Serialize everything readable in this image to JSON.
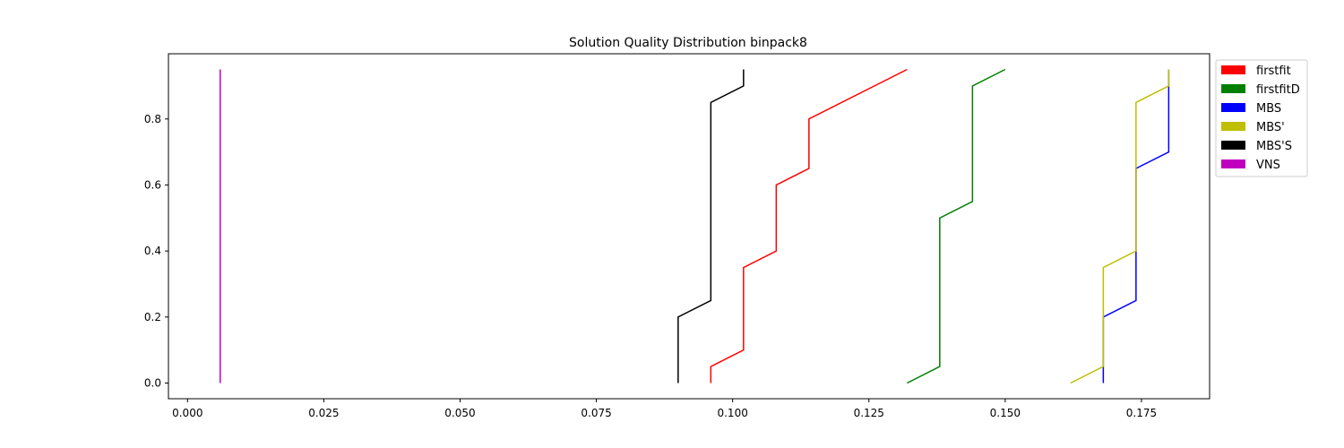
{
  "chart_data": {
    "type": "line",
    "title": "Solution Quality Distribution binpack8",
    "xlabel": "",
    "ylabel": "",
    "xlim": [
      -0.0035,
      0.1875
    ],
    "ylim": [
      -0.0475,
      0.9975
    ],
    "x_ticks": [
      0.0,
      0.025,
      0.05,
      0.075,
      0.1,
      0.125,
      0.15,
      0.175
    ],
    "x_tick_labels": [
      "0.000",
      "0.025",
      "0.050",
      "0.075",
      "0.100",
      "0.125",
      "0.150",
      "0.175"
    ],
    "y_ticks": [
      0.0,
      0.2,
      0.4,
      0.6,
      0.8
    ],
    "y_tick_labels": [
      "0.0",
      "0.2",
      "0.4",
      "0.6",
      "0.8"
    ],
    "grid": false,
    "legend_position": "outside-right-top",
    "series": [
      {
        "name": "firstfit",
        "color": "#ff0000",
        "x": [
          0.096,
          0.096,
          0.102,
          0.102,
          0.108,
          0.108,
          0.114,
          0.114,
          0.132
        ],
        "y": [
          0.0,
          0.05,
          0.1,
          0.35,
          0.4,
          0.6,
          0.65,
          0.8,
          0.95
        ]
      },
      {
        "name": "firstfitD",
        "color": "#008000",
        "x": [
          0.132,
          0.138,
          0.138,
          0.144,
          0.144,
          0.15
        ],
        "y": [
          0.0,
          0.05,
          0.5,
          0.55,
          0.9,
          0.95
        ]
      },
      {
        "name": "MBS",
        "color": "#0000ff",
        "x": [
          0.168,
          0.168,
          0.174,
          0.174,
          0.18,
          0.18
        ],
        "y": [
          0.0,
          0.2,
          0.25,
          0.65,
          0.7,
          0.95
        ]
      },
      {
        "name": "MBS'",
        "color": "#bfbf00",
        "x": [
          0.162,
          0.168,
          0.168,
          0.174,
          0.174,
          0.18,
          0.18
        ],
        "y": [
          0.0,
          0.05,
          0.35,
          0.4,
          0.85,
          0.9,
          0.95
        ]
      },
      {
        "name": "MBS'S",
        "color": "#000000",
        "x": [
          0.09,
          0.09,
          0.096,
          0.096,
          0.102,
          0.102
        ],
        "y": [
          0.0,
          0.2,
          0.25,
          0.85,
          0.9,
          0.95
        ]
      },
      {
        "name": "VNS",
        "color": "#bf00bf",
        "x": [
          0.006,
          0.006
        ],
        "y": [
          0.0,
          0.95
        ]
      }
    ]
  }
}
